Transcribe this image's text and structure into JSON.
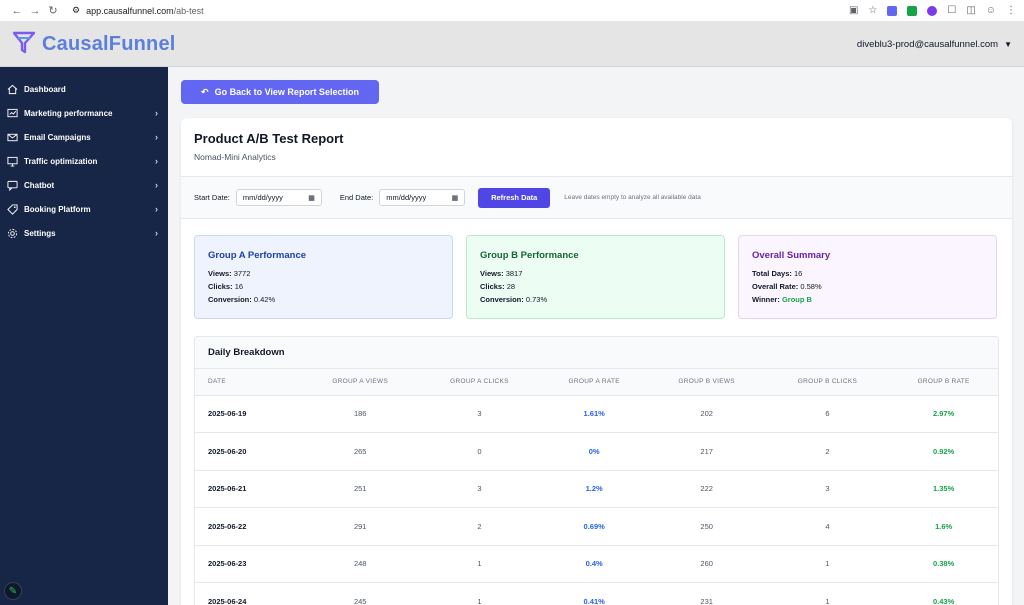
{
  "browser": {
    "url_host": "app.causalfunnel.com",
    "url_path": "/ab-test"
  },
  "header": {
    "logo_text": "CausalFunnel",
    "user_email": "diveblu3-prod@causalfunnel.com"
  },
  "sidebar": {
    "items": [
      {
        "label": "Dashboard",
        "icon": "home-icon",
        "has_chevron": false
      },
      {
        "label": "Marketing performance",
        "icon": "chart-icon",
        "has_chevron": true
      },
      {
        "label": "Email Campaigns",
        "icon": "mail-icon",
        "has_chevron": true
      },
      {
        "label": "Traffic optimization",
        "icon": "monitor-icon",
        "has_chevron": true
      },
      {
        "label": "Chatbot",
        "icon": "chat-icon",
        "has_chevron": true
      },
      {
        "label": "Booking Platform",
        "icon": "tag-icon",
        "has_chevron": true
      },
      {
        "label": "Settings",
        "icon": "gear-icon",
        "has_chevron": true
      }
    ]
  },
  "main": {
    "back_label": "Go Back to View Report Selection",
    "report_title": "Product A/B Test Report",
    "report_subtitle": "Nomad-Mini Analytics",
    "filters": {
      "start_label": "Start Date:",
      "start_placeholder": "mm/dd/yyyy",
      "end_label": "End Date:",
      "end_placeholder": "mm/dd/yyyy",
      "refresh_label": "Refresh Data",
      "hint": "Leave dates empty to analyze all available data"
    },
    "cards": {
      "a": {
        "title": "Group A Performance",
        "views_label": "Views:",
        "views": "3772",
        "clicks_label": "Clicks:",
        "clicks": "16",
        "conv_label": "Conversion:",
        "conv": "0.42%"
      },
      "b": {
        "title": "Group B Performance",
        "views_label": "Views:",
        "views": "3817",
        "clicks_label": "Clicks:",
        "clicks": "28",
        "conv_label": "Conversion:",
        "conv": "0.73%"
      },
      "summary": {
        "title": "Overall Summary",
        "days_label": "Total Days:",
        "days": "16",
        "rate_label": "Overall Rate:",
        "rate": "0.58%",
        "winner_label": "Winner:",
        "winner": "Group B"
      }
    },
    "table": {
      "title": "Daily Breakdown",
      "headers": [
        "Date",
        "Group A Views",
        "Group A Clicks",
        "Group A Rate",
        "Group B Views",
        "Group B Clicks",
        "Group B Rate"
      ],
      "rows": [
        [
          "2025-06-19",
          "186",
          "3",
          "1.61%",
          "202",
          "6",
          "2.97%"
        ],
        [
          "2025-06-20",
          "265",
          "0",
          "0%",
          "217",
          "2",
          "0.92%"
        ],
        [
          "2025-06-21",
          "251",
          "3",
          "1.2%",
          "222",
          "3",
          "1.35%"
        ],
        [
          "2025-06-22",
          "291",
          "2",
          "0.69%",
          "250",
          "4",
          "1.6%"
        ],
        [
          "2025-06-23",
          "248",
          "1",
          "0.4%",
          "260",
          "1",
          "0.38%"
        ],
        [
          "2025-06-24",
          "245",
          "1",
          "0.41%",
          "231",
          "1",
          "0.43%"
        ]
      ]
    }
  },
  "colors": {
    "sidebar_bg": "#172547",
    "primary": "#4f46e5",
    "back_button": "#6366f1",
    "group_a": "#2563eb",
    "group_b": "#16a34a",
    "summary": "#6b21a8"
  }
}
